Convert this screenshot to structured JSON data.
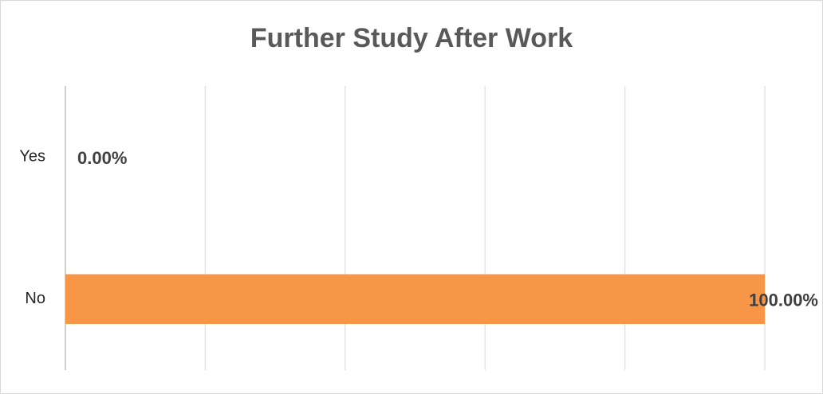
{
  "chart_data": {
    "type": "hbar",
    "title": "Further Study After Work",
    "categories": [
      "Yes",
      "No"
    ],
    "values": [
      0,
      100
    ],
    "value_labels": [
      "0.00%",
      "100.00%"
    ],
    "color": "#f79646",
    "xlim": [
      0,
      100
    ],
    "xticks": [
      0,
      20,
      40,
      60,
      80,
      100
    ],
    "grid": true
  }
}
